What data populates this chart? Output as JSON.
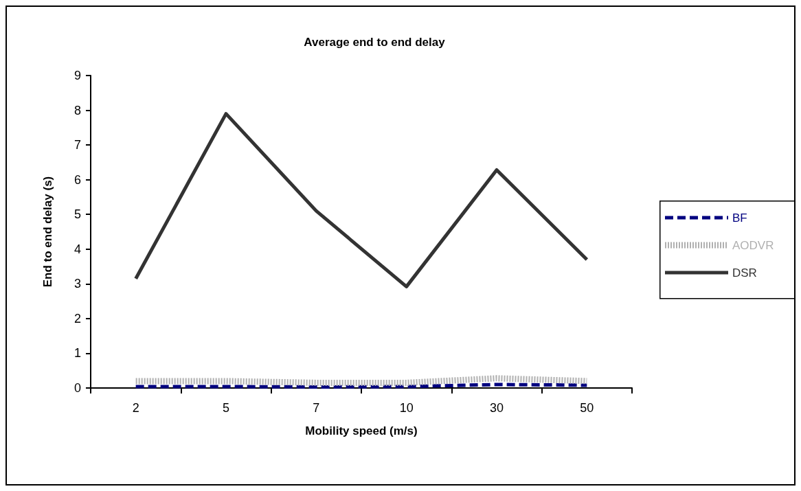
{
  "chart_data": {
    "type": "line",
    "title": "Average end to end delay",
    "xlabel": "Mobility speed (m/s)",
    "ylabel": "End to end delay (s)",
    "categories": [
      "2",
      "5",
      "7",
      "10",
      "30",
      "50"
    ],
    "series": [
      {
        "name": "BF",
        "color": "#000080",
        "line_style": "dashed",
        "values": [
          0.04,
          0.04,
          0.03,
          0.04,
          0.1,
          0.08
        ]
      },
      {
        "name": "AODVR",
        "color": "#b0b0b0",
        "line_style": "dotted",
        "values": [
          0.2,
          0.2,
          0.15,
          0.15,
          0.28,
          0.2
        ]
      },
      {
        "name": "DSR",
        "color": "#333333",
        "line_style": "solid",
        "values": [
          3.15,
          7.9,
          5.1,
          2.92,
          6.28,
          3.7
        ]
      }
    ],
    "ylim": [
      0,
      9
    ],
    "yticks": [
      0,
      1,
      2,
      3,
      4,
      5,
      6,
      7,
      8,
      9
    ],
    "grid": false,
    "legend": "right",
    "marker": "none"
  }
}
